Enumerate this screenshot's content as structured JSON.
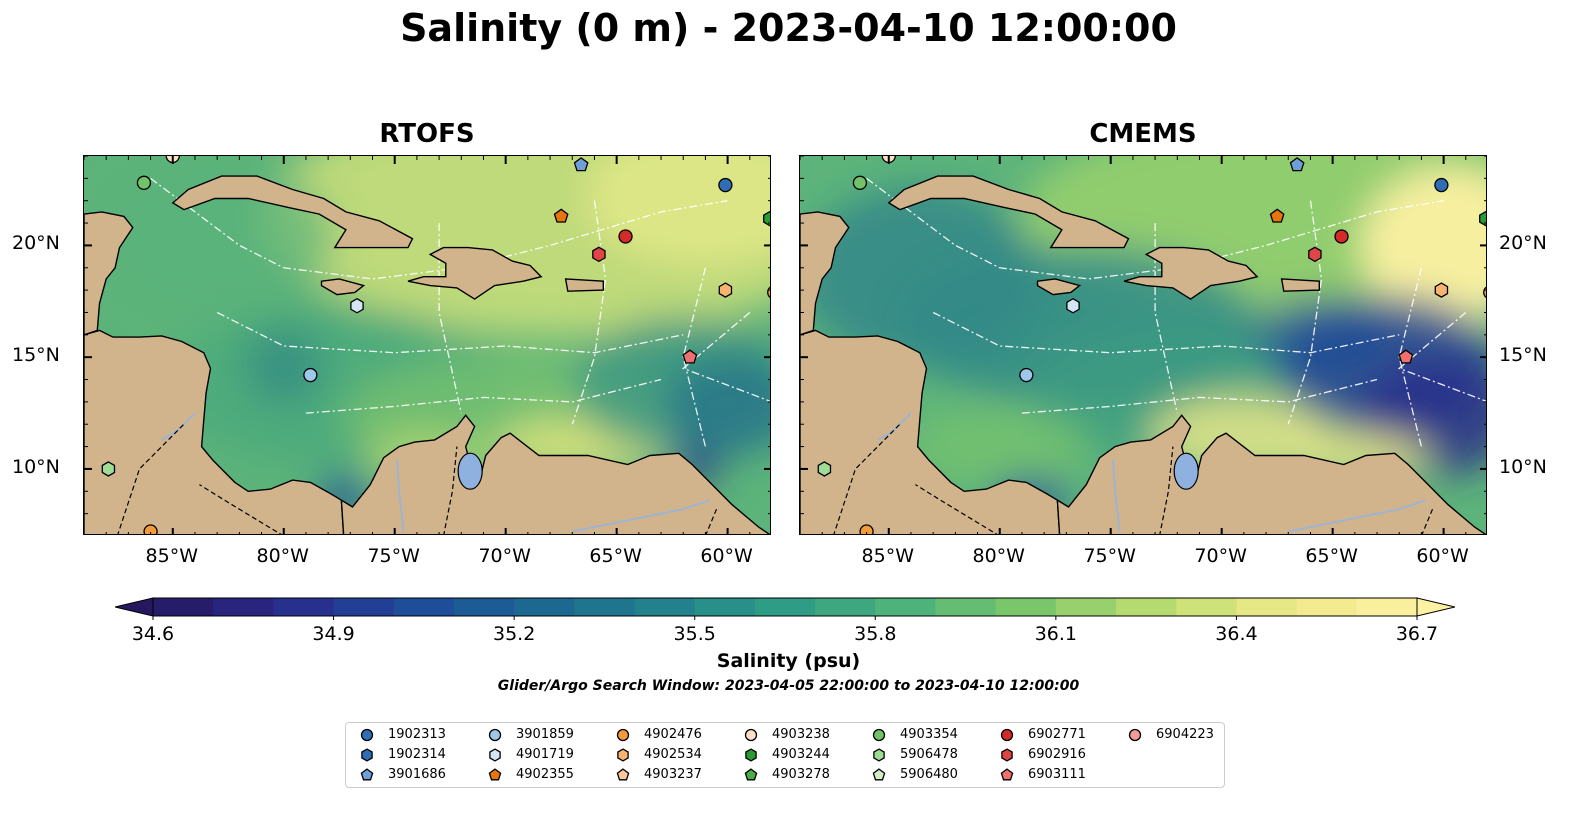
{
  "figure": {
    "title": "Salinity (0 m) - 2023-04-10 12:00:00",
    "subtitle": "Glider/Argo Search Window: 2023-04-05 22:00:00 to 2023-04-10 12:00:00"
  },
  "panels": [
    {
      "title": "RTOFS",
      "style": "rtofs"
    },
    {
      "title": "CMEMS",
      "style": "cmems"
    }
  ],
  "map_axes": {
    "lon_range": [
      -89,
      -58
    ],
    "lat_range": [
      7,
      24
    ],
    "lon_ticks": [
      {
        "value": -85,
        "label": "85°W"
      },
      {
        "value": -80,
        "label": "80°W"
      },
      {
        "value": -75,
        "label": "75°W"
      },
      {
        "value": -70,
        "label": "70°W"
      },
      {
        "value": -65,
        "label": "65°W"
      },
      {
        "value": -60,
        "label": "60°W"
      }
    ],
    "lat_ticks": [
      {
        "value": 20,
        "label": "20°N"
      },
      {
        "value": 15,
        "label": "15°N"
      },
      {
        "value": 10,
        "label": "10°N"
      }
    ]
  },
  "colorbar": {
    "label": "Salinity (psu)",
    "min": 34.6,
    "max": 36.7,
    "ticks": [
      "34.6",
      "34.9",
      "35.2",
      "35.5",
      "35.8",
      "36.1",
      "36.4",
      "36.7"
    ],
    "colors": [
      "#26185f",
      "#2a2a8a",
      "#1f4a9a",
      "#1b6590",
      "#22808d",
      "#2f9c86",
      "#4fb479",
      "#7fc86a",
      "#bedd70",
      "#f0e98a",
      "#fdf1a3"
    ],
    "extend": "both"
  },
  "colors": {
    "land": "#d2b48c",
    "lake": "#8eb1e0",
    "river": "#9db4d2"
  },
  "legend": {
    "entries": [
      {
        "id": "1902313",
        "marker": "circle",
        "color": "#2e6eb5"
      },
      {
        "id": "1902314",
        "marker": "hexagon",
        "color": "#2e6eb5"
      },
      {
        "id": "3901686",
        "marker": "pentagon",
        "color": "#6f9fd8"
      },
      {
        "id": "3901859",
        "marker": "circle",
        "color": "#9ec8ea"
      },
      {
        "id": "4901719",
        "marker": "hexagon",
        "color": "#d2e6f6"
      },
      {
        "id": "4902355",
        "marker": "pentagon",
        "color": "#e8740c"
      },
      {
        "id": "4902476",
        "marker": "circle",
        "color": "#f39a3a"
      },
      {
        "id": "4902534",
        "marker": "hexagon",
        "color": "#f7b46f"
      },
      {
        "id": "4903237",
        "marker": "pentagon",
        "color": "#fac89a"
      },
      {
        "id": "4903238",
        "marker": "circle",
        "color": "#fde0c8"
      },
      {
        "id": "4903244",
        "marker": "hexagon",
        "color": "#2a9a33"
      },
      {
        "id": "4903278",
        "marker": "pentagon",
        "color": "#4aad45"
      },
      {
        "id": "4903354",
        "marker": "circle",
        "color": "#72c26a"
      },
      {
        "id": "5906478",
        "marker": "hexagon",
        "color": "#a0dc95"
      },
      {
        "id": "5906480",
        "marker": "pentagon",
        "color": "#cfeec4"
      },
      {
        "id": "6902771",
        "marker": "circle",
        "color": "#d42a2a"
      },
      {
        "id": "6902916",
        "marker": "hexagon",
        "color": "#e04545"
      },
      {
        "id": "6903111",
        "marker": "pentagon",
        "color": "#ee7070"
      },
      {
        "id": "6904223",
        "marker": "circle",
        "color": "#f59a9a"
      }
    ]
  },
  "floats": [
    {
      "id": "4903238",
      "lon": -85.0,
      "lat": 24.0
    },
    {
      "id": "4903354",
      "lon": -86.3,
      "lat": 22.8
    },
    {
      "id": "3901686",
      "lon": -66.6,
      "lat": 23.6
    },
    {
      "id": "1902313",
      "lon": -60.1,
      "lat": 22.7
    },
    {
      "id": "4902355",
      "lon": -67.5,
      "lat": 21.3
    },
    {
      "id": "4903244",
      "lon": -58.1,
      "lat": 21.2
    },
    {
      "id": "6902771",
      "lon": -64.6,
      "lat": 20.4
    },
    {
      "id": "6902916",
      "lon": -65.8,
      "lat": 19.6
    },
    {
      "id": "4902534",
      "lon": -60.1,
      "lat": 18.0
    },
    {
      "id": "4902476",
      "lon": -57.9,
      "lat": 17.9
    },
    {
      "id": "4901719",
      "lon": -76.7,
      "lat": 17.3
    },
    {
      "id": "6903111",
      "lon": -61.7,
      "lat": 15.0
    },
    {
      "id": "3901859",
      "lon": -78.8,
      "lat": 14.2
    },
    {
      "id": "5906478",
      "lon": -87.9,
      "lat": 10.0
    },
    {
      "id": "4902476",
      "lon": -86.0,
      "lat": 7.2
    }
  ]
}
